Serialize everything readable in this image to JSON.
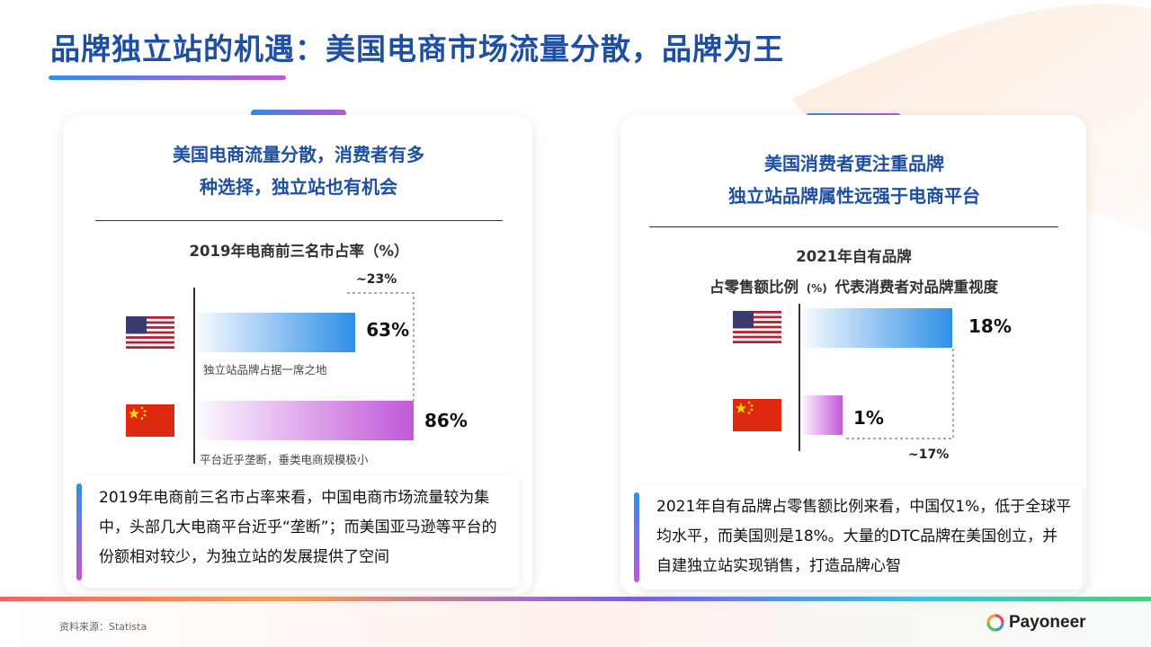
{
  "title": "品牌独立站的机遇：美国电商市场流量分散，品牌为王",
  "colors": {
    "accent_blue": "#2f8fe6",
    "accent_pink": "#c257d9",
    "title_blue": "#1f4fa3"
  },
  "left": {
    "heading_line1": "美国电商流量分散，消费者有多",
    "heading_line2": "种选择，独立站也有机会",
    "chart_title": "2019年电商前三名市占率（%）",
    "diff_label": "~23%",
    "note_us": "独立站品牌占据一席之地",
    "note_cn": "平台近乎垄断，垂类电商规模极小",
    "description": "2019年电商前三名市占率来看，中国电商市场流量较为集中，头部几大电商平台近乎“垄断”；而美国亚马逊等平台的份额相对较少，为独立站的发展提供了空间"
  },
  "right": {
    "heading_line1": "美国消费者更注重品牌",
    "heading_line2": "独立站品牌属性远强于电商平台",
    "chart_title_line1": "2021年自有品牌",
    "chart_title_line2a": "占零售额比例",
    "chart_title_unit": "(%)",
    "chart_title_line2b": "代表消费者对品牌重视度",
    "diff_label": "~17%",
    "description": "2021年自有品牌占零售额比例来看，中国仅1%，低于全球平均水平，而美国则是18%。大量的DTC品牌在美国创立，并自建独立站实现销售，打造品牌心智"
  },
  "chart_data": [
    {
      "type": "bar",
      "title": "2019年电商前三名市占率（%）",
      "categories": [
        "美国",
        "中国"
      ],
      "values": [
        63,
        86
      ],
      "value_labels": [
        "63%",
        "86%"
      ],
      "annotation": "~23%"
    },
    {
      "type": "bar",
      "title": "2021年自有品牌占零售额比例(%)代表消费者对品牌重视度",
      "categories": [
        "美国",
        "中国"
      ],
      "values": [
        18,
        1
      ],
      "value_labels": [
        "18%",
        "1%"
      ],
      "annotation": "~17%"
    }
  ],
  "footer": {
    "source": "资料来源：Statista",
    "logo_text": "Payoneer"
  }
}
